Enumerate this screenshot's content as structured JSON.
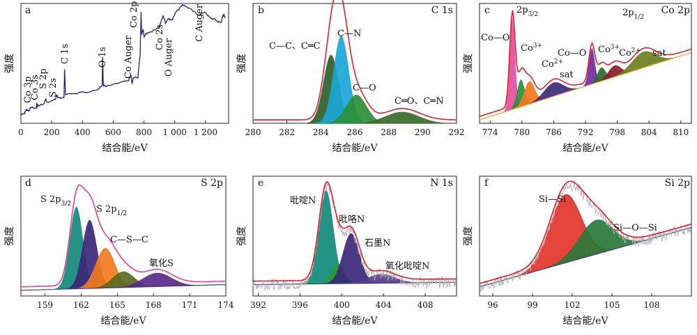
{
  "figure": {
    "xlabel": "结合能/eV",
    "ylabel": "强度"
  },
  "chart_data": [
    {
      "panel": "a",
      "type": "line",
      "title": "",
      "xlabel": "结合能/eV",
      "ylabel": "强度",
      "xlim": [
        0,
        1350
      ],
      "ylim": [
        0,
        100
      ],
      "xticks": [
        0,
        200,
        400,
        600,
        800,
        1000,
        1200
      ],
      "xtick_labels": [
        "0",
        "200",
        "400",
        "600",
        "800",
        "1 000",
        "1 200"
      ],
      "series": [
        {
          "color": "#2b1f6e",
          "x": [
            0,
            25,
            35,
            55,
            62,
            100,
            103,
            108,
            150,
            162,
            168,
            225,
            232,
            240,
            280,
            284,
            290,
            400,
            500,
            528,
            531,
            536,
            560,
            700,
            715,
            722,
            730,
            760,
            775,
            781,
            785,
            795,
            800,
            820,
            860,
            900,
            925,
            940,
            960,
            980,
            1000,
            1050,
            1100,
            1150,
            1200,
            1230,
            1260,
            1280,
            1300,
            1310,
            1320,
            1330
          ],
          "y": [
            8,
            9,
            12,
            11,
            14,
            13,
            18,
            15,
            17,
            22,
            18,
            21,
            25,
            22,
            23,
            48,
            25,
            27,
            29,
            34,
            58,
            33,
            33,
            38,
            42,
            35,
            40,
            40,
            60,
            97,
            78,
            82,
            76,
            79,
            81,
            85,
            94,
            88,
            92,
            90,
            96,
            104,
            100,
            95,
            97,
            92,
            91,
            89,
            88,
            93,
            95,
            92
          ]
        }
      ],
      "annotations": [
        "Co 3p",
        "Co 3s",
        "S 2p",
        "S 2s",
        "C 1s",
        "O 1s",
        "Co Auger",
        "Co 2p",
        "Co 2s",
        "O Auger",
        "C Auger"
      ]
    },
    {
      "panel": "b",
      "type": "line",
      "title": "C 1s",
      "xlabel": "结合能/eV",
      "ylabel": "强度",
      "xlim": [
        280,
        292
      ],
      "ylim": [
        0,
        100
      ],
      "xticks": [
        280,
        282,
        284,
        286,
        288,
        290,
        292
      ],
      "components": [
        {
          "label": "C—C、C═C",
          "center": 284.6,
          "sigma": 0.45,
          "amp": 60,
          "color": "#2f5f28"
        },
        {
          "label": "C—N",
          "center": 285.2,
          "sigma": 0.45,
          "amp": 77,
          "color": "#1ba6d6"
        },
        {
          "label": "C—O",
          "center": 286.1,
          "sigma": 0.6,
          "amp": 25,
          "color": "#2d8f3a"
        },
        {
          "label": "C═O、C═N",
          "center": 288.8,
          "sigma": 1.0,
          "amp": 10,
          "color": "#3a6a2a"
        }
      ],
      "envelope_color": "#e0202a"
    },
    {
      "panel": "c",
      "type": "line",
      "title": "Co 2p",
      "xlabel": "结合能/eV",
      "ylabel": "强度",
      "xlim": [
        772,
        812
      ],
      "ylim": [
        0,
        100
      ],
      "xticks": [
        774,
        780,
        786,
        792,
        798,
        804,
        810
      ],
      "baseline": [
        [
          772,
          3
        ],
        [
          812,
          62
        ]
      ],
      "components": [
        {
          "label": "Co—O",
          "center": 778.2,
          "sigma": 0.5,
          "amp": 82,
          "color": "#e34fa0"
        },
        {
          "label": "Co3+",
          "center": 779.8,
          "sigma": 0.7,
          "amp": 24,
          "color": "#2a8f3a"
        },
        {
          "label": "Co2+",
          "center": 781.4,
          "sigma": 1.0,
          "amp": 20,
          "color": "#f27b20"
        },
        {
          "label": "sat",
          "center": 786.0,
          "sigma": 1.8,
          "amp": 12,
          "color": "#3e2a7a"
        },
        {
          "label": "Co—O",
          "center": 793.2,
          "sigma": 0.55,
          "amp": 32,
          "color": "#6a2ea0"
        },
        {
          "label": "Co3+",
          "center": 795.0,
          "sigma": 0.8,
          "amp": 12,
          "color": "#2d6a2a"
        },
        {
          "label": "Co2+",
          "center": 797.5,
          "sigma": 1.2,
          "amp": 10,
          "color": "#8a1a2a"
        },
        {
          "label": "sat",
          "center": 803.0,
          "sigma": 2.2,
          "amp": 14,
          "color": "#6e7d20"
        }
      ],
      "envelope_color": "#e0202a",
      "annotations": [
        "2p3/2",
        "2p1/2"
      ]
    },
    {
      "panel": "d",
      "type": "line",
      "title": "S 2p",
      "xlabel": "结合能/eV",
      "ylabel": "强度",
      "xlim": [
        157,
        174
      ],
      "ylim": [
        0,
        100
      ],
      "xticks": [
        159,
        162,
        165,
        168,
        171,
        174
      ],
      "baseline": [
        [
          157,
          5
        ],
        [
          174,
          10
        ]
      ],
      "components": [
        {
          "label": "S 2p3/2",
          "center": 161.6,
          "sigma": 0.55,
          "amp": 72,
          "color": "#128a78"
        },
        {
          "label": "S 2p1/2",
          "center": 162.7,
          "sigma": 0.6,
          "amp": 60,
          "color": "#3a2878"
        },
        {
          "label": "C—S—C",
          "center": 164.0,
          "sigma": 0.8,
          "amp": 35,
          "color": "#f27b20"
        },
        {
          "label": "",
          "center": 165.5,
          "sigma": 0.9,
          "amp": 14,
          "color": "#5a6a20"
        },
        {
          "label": "氧化S",
          "center": 168.3,
          "sigma": 1.2,
          "amp": 12,
          "color": "#5a2a88"
        }
      ],
      "envelope_color": "#e0409a"
    },
    {
      "panel": "e",
      "type": "line",
      "title": "N 1s",
      "xlabel": "结合能/eV",
      "ylabel": "强度",
      "xlim": [
        391.5,
        411
      ],
      "ylim": [
        0,
        100
      ],
      "xticks": [
        392,
        396,
        400,
        404,
        408
      ],
      "baseline": [
        [
          391.5,
          10
        ],
        [
          411,
          12
        ]
      ],
      "components": [
        {
          "label": "吡啶N",
          "center": 398.5,
          "sigma": 0.7,
          "amp": 82,
          "color": "#128a78"
        },
        {
          "label": "吡咯N",
          "center": 399.6,
          "sigma": 0.6,
          "amp": 18,
          "color": "#2a9a3a"
        },
        {
          "label": "石墨N",
          "center": 400.9,
          "sigma": 0.8,
          "amp": 44,
          "color": "#3a2878"
        },
        {
          "label": "氧化吡啶N",
          "center": 403.8,
          "sigma": 1.3,
          "amp": 8,
          "color": "#5a3a90"
        }
      ],
      "envelope_color": "#e0202a",
      "noise_color": "#b0b0b0"
    },
    {
      "panel": "f",
      "type": "line",
      "title": "Si 2p",
      "xlabel": "结合能/eV",
      "ylabel": "强度",
      "xlim": [
        95,
        111
      ],
      "ylim": [
        0,
        100
      ],
      "xticks": [
        96,
        99,
        102,
        105,
        108
      ],
      "baseline": [
        [
          95,
          8
        ],
        [
          111,
          60
        ]
      ],
      "components": [
        {
          "label": "Si—Si",
          "center": 101.5,
          "sigma": 1.2,
          "amp": 60,
          "color": "#e3342a"
        },
        {
          "label": "Si—O—Si",
          "center": 103.8,
          "sigma": 1.3,
          "amp": 30,
          "color": "#2a7a3a"
        }
      ],
      "envelope_color": "#e0202a",
      "noise_color": "#b0b0b0"
    }
  ]
}
